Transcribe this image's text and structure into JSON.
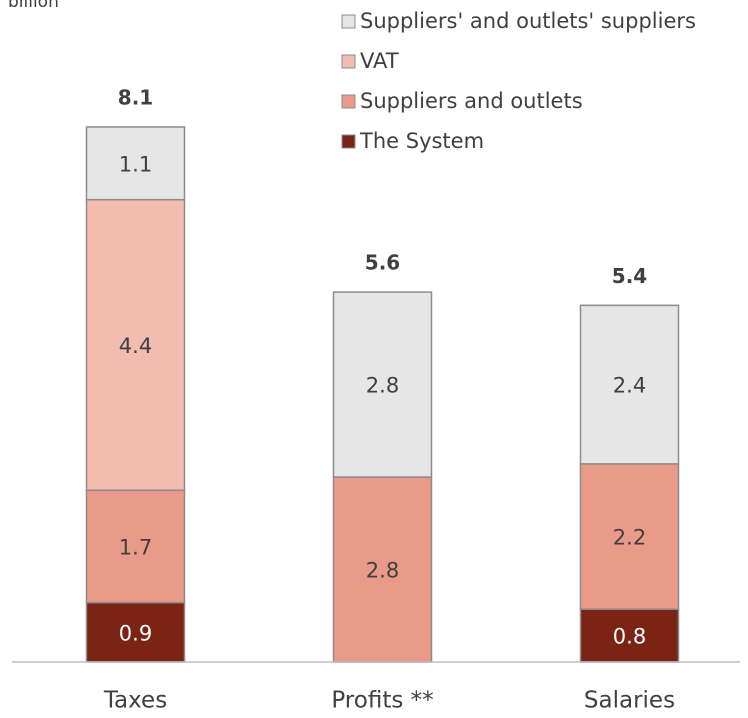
{
  "chart_data": {
    "type": "stacked_bar",
    "subtitle": "billion",
    "categories": [
      "Taxes",
      "Profits **",
      "Salaries"
    ],
    "series": [
      {
        "name": "The System",
        "color": "#7b2314",
        "label_color": "#ffffff",
        "values": [
          0.9,
          null,
          0.8
        ]
      },
      {
        "name": "Suppliers and outlets",
        "color": "#e99a88",
        "label_color": "#404040",
        "values": [
          1.7,
          2.8,
          2.2
        ]
      },
      {
        "name": "VAT",
        "color": "#f2bcb0",
        "label_color": "#404040",
        "values": [
          4.4,
          null,
          null
        ]
      },
      {
        "name": "Suppliers' and outlets' suppliers",
        "color": "#e6e6e6",
        "label_color": "#404040",
        "values": [
          1.1,
          2.8,
          2.4
        ]
      }
    ],
    "totals": [
      8.1,
      5.6,
      5.4
    ]
  }
}
